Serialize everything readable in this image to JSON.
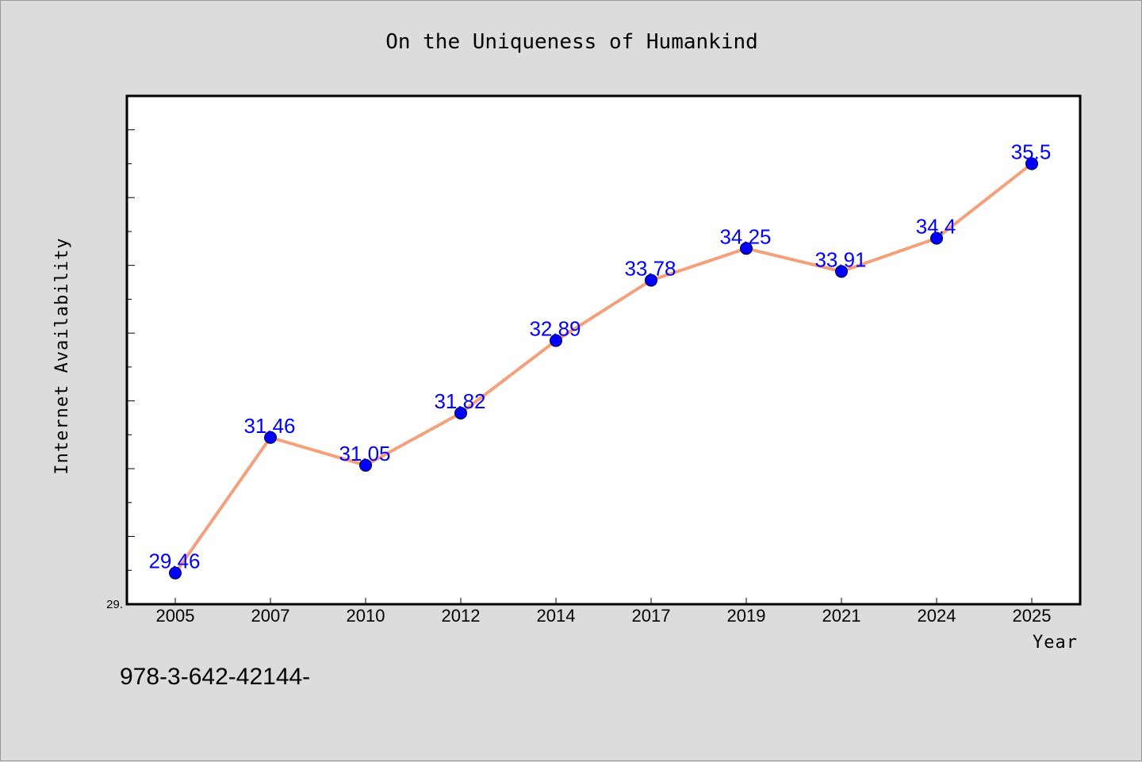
{
  "chart_data": {
    "type": "line",
    "title": "On the Uniqueness of Humankind",
    "xlabel": "Year",
    "ylabel": "Internet Availability",
    "categories": [
      "2005",
      "2007",
      "2010",
      "2012",
      "2014",
      "2017",
      "2019",
      "2021",
      "2024",
      "2025"
    ],
    "series": [
      {
        "values": [
          29.46,
          31.46,
          31.05,
          31.82,
          32.89,
          33.78,
          34.25,
          33.91,
          34.4,
          35.5
        ],
        "labels": [
          "29.46",
          "31.46",
          "31.05",
          "31.82",
          "32.89",
          "33.78",
          "34.25",
          "33.91",
          "34.4",
          "35.5"
        ]
      }
    ],
    "ytick_labels": [
      "29."
    ],
    "ylim": [
      29.0,
      36.5
    ],
    "grid": false,
    "colors": {
      "line": "#f4a07a",
      "marker": "#0000ff",
      "data_label": "#0000ff",
      "plot_background": "#ffffff",
      "page_background": "#dcdcdc"
    }
  },
  "footer": {
    "text": "978-3-642-42144-"
  }
}
